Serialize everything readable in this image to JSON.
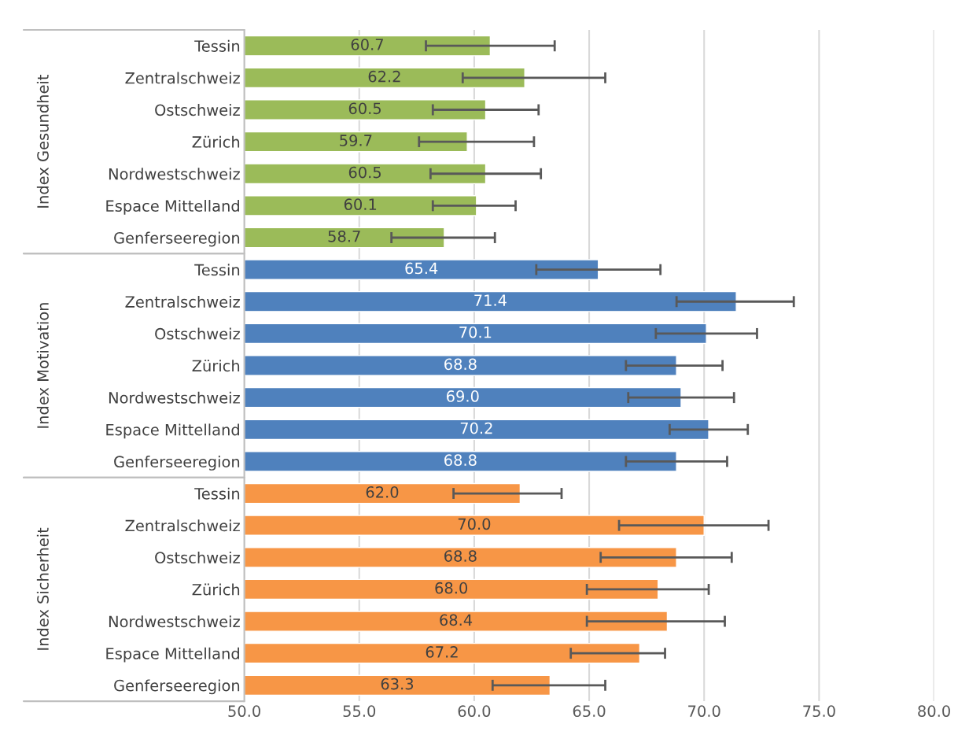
{
  "chart_data": {
    "type": "bar",
    "orientation": "horizontal",
    "annotations": [
      "Index Gesundheit",
      "Index Motivation",
      "Index Sicherheit"
    ],
    "grid": "x",
    "legend": false,
    "categories": [
      "Tessin",
      "Zentralschweiz",
      "Ostschweiz",
      "Zürich",
      "Nordwestschweiz",
      "Espace Mittelland",
      "Genferseeregion",
      "Tessin",
      "Zentralschweiz",
      "Ostschweiz",
      "Zürich",
      "Nordwestschweiz",
      "Espace Mittelland",
      "Genferseeregion",
      "Tessin",
      "Zentralschweiz",
      "Ostschweiz",
      "Zürich",
      "Nordwestschweiz",
      "Espace Mittelland",
      "Genferseeregion"
    ],
    "xlim": [
      50,
      80
    ],
    "xticks": [
      {
        "value": 50,
        "label": "50.0"
      },
      {
        "value": 55,
        "label": "55.0"
      },
      {
        "value": 60,
        "label": "60.0"
      },
      {
        "value": 65,
        "label": "65.0"
      },
      {
        "value": 70,
        "label": "70.0"
      },
      {
        "value": 75,
        "label": "75.0"
      },
      {
        "value": 80,
        "label": "80.0"
      }
    ],
    "series": [
      {
        "color": "#9bbb59",
        "values": [
          60.7,
          62.2,
          60.5,
          59.7,
          60.5,
          60.1,
          58.7,
          null,
          null,
          null,
          null,
          null,
          null,
          null,
          null,
          null,
          null,
          null,
          null,
          null,
          null
        ],
        "value_labels": [
          "60.7",
          "62.2",
          "60.5",
          "59.7",
          "60.5",
          "60.1",
          "58.7",
          null,
          null,
          null,
          null,
          null,
          null,
          null,
          null,
          null,
          null,
          null,
          null,
          null,
          null
        ],
        "errors": [
          [
            57.9,
            63.5
          ],
          [
            59.5,
            65.7
          ],
          [
            58.2,
            62.8
          ],
          [
            57.6,
            62.6
          ],
          [
            58.1,
            62.9
          ],
          [
            58.2,
            61.8
          ],
          [
            56.4,
            60.9
          ],
          null,
          null,
          null,
          null,
          null,
          null,
          null,
          null,
          null,
          null,
          null,
          null,
          null,
          null
        ]
      },
      {
        "color": "#4f81bd",
        "values": [
          null,
          null,
          null,
          null,
          null,
          null,
          null,
          65.4,
          71.4,
          70.1,
          68.8,
          69.0,
          70.2,
          68.8,
          null,
          null,
          null,
          null,
          null,
          null,
          null
        ],
        "value_labels": [
          null,
          null,
          null,
          null,
          null,
          null,
          null,
          "65.4",
          "71.4",
          "70.1",
          "68.8",
          "69.0",
          "70.2",
          "68.8",
          null,
          null,
          null,
          null,
          null,
          null,
          null
        ],
        "errors": [
          null,
          null,
          null,
          null,
          null,
          null,
          null,
          [
            62.7,
            68.1
          ],
          [
            68.8,
            73.9
          ],
          [
            67.9,
            72.3
          ],
          [
            66.6,
            70.8
          ],
          [
            66.7,
            71.3
          ],
          [
            68.5,
            71.9
          ],
          [
            66.6,
            71.0
          ],
          null,
          null,
          null,
          null,
          null,
          null,
          null
        ]
      },
      {
        "color": "#f79646",
        "values": [
          null,
          null,
          null,
          null,
          null,
          null,
          null,
          null,
          null,
          null,
          null,
          null,
          null,
          null,
          62.0,
          70.0,
          68.8,
          68.0,
          68.4,
          67.2,
          63.3
        ],
        "value_labels": [
          null,
          null,
          null,
          null,
          null,
          null,
          null,
          null,
          null,
          null,
          null,
          null,
          null,
          null,
          "62.0",
          "70.0",
          "68.8",
          "68.0",
          "68.4",
          "67.2",
          "63.3"
        ],
        "errors": [
          null,
          null,
          null,
          null,
          null,
          null,
          null,
          null,
          null,
          null,
          null,
          null,
          null,
          null,
          [
            59.1,
            63.8
          ],
          [
            66.3,
            72.8
          ],
          [
            65.5,
            71.2
          ],
          [
            64.9,
            70.2
          ],
          [
            64.9,
            70.9
          ],
          [
            64.2,
            68.3
          ],
          [
            60.8,
            65.7
          ]
        ]
      }
    ]
  }
}
